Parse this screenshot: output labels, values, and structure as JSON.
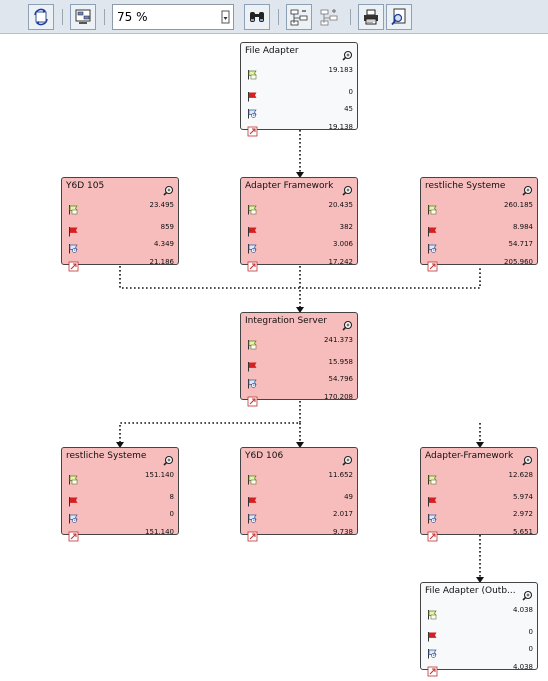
{
  "toolbar": {
    "zoom_value": "75 %"
  },
  "nodes": [
    {
      "title": "File Adapter",
      "variant": "white",
      "values": [
        "19.183",
        "0",
        "45",
        "19.138"
      ]
    },
    {
      "title": "Y6D 105",
      "variant": "red",
      "values": [
        "23.495",
        "859",
        "4.349",
        "21.186"
      ]
    },
    {
      "title": "Adapter Framework",
      "variant": "red",
      "values": [
        "20.435",
        "382",
        "3.006",
        "17.242"
      ]
    },
    {
      "title": "restliche Systeme",
      "variant": "red",
      "values": [
        "260.185",
        "8.984",
        "54.717",
        "205.960"
      ]
    },
    {
      "title": "Integration Server",
      "variant": "red",
      "values": [
        "241.373",
        "15.958",
        "54.796",
        "170.208"
      ]
    },
    {
      "title": "restliche Systeme",
      "variant": "red",
      "values": [
        "151.140",
        "8",
        "0",
        "151.140"
      ]
    },
    {
      "title": "Y6D 106",
      "variant": "red",
      "values": [
        "11.652",
        "49",
        "2.017",
        "9.738"
      ]
    },
    {
      "title": "Adapter-Framework",
      "variant": "red",
      "values": [
        "12.628",
        "5.974",
        "2.972",
        "5.651"
      ]
    },
    {
      "title": "File Adapter (Outb...",
      "variant": "white",
      "values": [
        "4.038",
        "0",
        "0",
        "4.038"
      ]
    }
  ]
}
